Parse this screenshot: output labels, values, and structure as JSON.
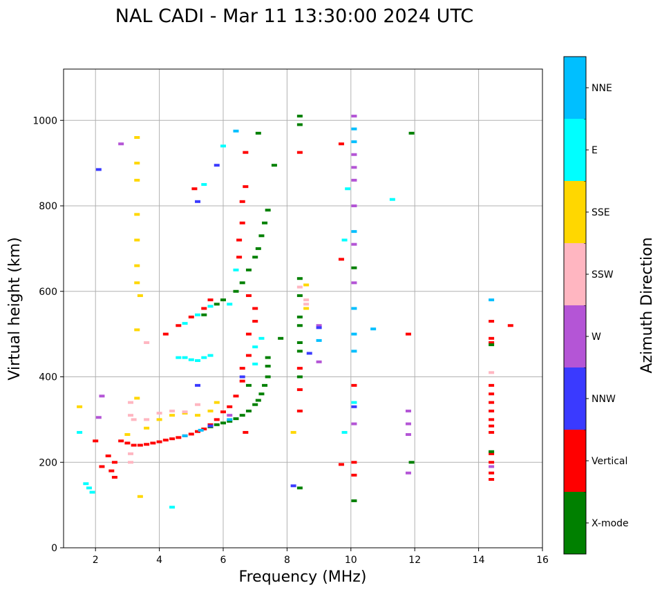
{
  "chart_data": {
    "type": "scatter",
    "title": "NAL CADI - Mar 11 13:30:00 2024 UTC",
    "xlabel": "Frequency (MHz)",
    "ylabel": "Virtual height (km)",
    "xlim": [
      1,
      16
    ],
    "ylim": [
      0,
      1120
    ],
    "xticks": [
      2,
      4,
      6,
      8,
      10,
      12,
      14,
      16
    ],
    "yticks": [
      0,
      200,
      400,
      600,
      800,
      1000
    ],
    "grid": true,
    "colorbar": {
      "label": "Azimuth Direction",
      "categories": [
        {
          "name": "X-mode",
          "color": "#008000"
        },
        {
          "name": "Vertical",
          "color": "#ff0000"
        },
        {
          "name": "NNW",
          "color": "#3a3aff"
        },
        {
          "name": "W",
          "color": "#b455d6"
        },
        {
          "name": "SSW",
          "color": "#ffb6c1"
        },
        {
          "name": "SSE",
          "color": "#ffd700"
        },
        {
          "name": "E",
          "color": "#00ffff"
        },
        {
          "name": "NNE",
          "color": "#00bfff"
        }
      ]
    },
    "points": [
      {
        "x": 2.0,
        "y": 250,
        "d": "Vertical"
      },
      {
        "x": 2.2,
        "y": 190,
        "d": "Vertical"
      },
      {
        "x": 2.4,
        "y": 215,
        "d": "Vertical"
      },
      {
        "x": 2.5,
        "y": 180,
        "d": "Vertical"
      },
      {
        "x": 2.6,
        "y": 200,
        "d": "Vertical"
      },
      {
        "x": 2.6,
        "y": 165,
        "d": "Vertical"
      },
      {
        "x": 2.8,
        "y": 250,
        "d": "Vertical"
      },
      {
        "x": 3.0,
        "y": 245,
        "d": "Vertical"
      },
      {
        "x": 3.2,
        "y": 240,
        "d": "Vertical"
      },
      {
        "x": 3.4,
        "y": 240,
        "d": "Vertical"
      },
      {
        "x": 3.6,
        "y": 242,
        "d": "Vertical"
      },
      {
        "x": 3.8,
        "y": 245,
        "d": "Vertical"
      },
      {
        "x": 4.0,
        "y": 248,
        "d": "Vertical"
      },
      {
        "x": 4.2,
        "y": 252,
        "d": "Vertical"
      },
      {
        "x": 4.4,
        "y": 255,
        "d": "Vertical"
      },
      {
        "x": 4.6,
        "y": 258,
        "d": "Vertical"
      },
      {
        "x": 4.8,
        "y": 262,
        "d": "Vertical"
      },
      {
        "x": 5.0,
        "y": 266,
        "d": "Vertical"
      },
      {
        "x": 5.2,
        "y": 272,
        "d": "Vertical"
      },
      {
        "x": 5.4,
        "y": 278,
        "d": "Vertical"
      },
      {
        "x": 5.6,
        "y": 288,
        "d": "Vertical"
      },
      {
        "x": 5.8,
        "y": 300,
        "d": "Vertical"
      },
      {
        "x": 6.0,
        "y": 318,
        "d": "Vertical"
      },
      {
        "x": 6.2,
        "y": 330,
        "d": "Vertical"
      },
      {
        "x": 6.4,
        "y": 355,
        "d": "Vertical"
      },
      {
        "x": 6.6,
        "y": 390,
        "d": "Vertical"
      },
      {
        "x": 6.6,
        "y": 420,
        "d": "Vertical"
      },
      {
        "x": 6.8,
        "y": 450,
        "d": "Vertical"
      },
      {
        "x": 6.8,
        "y": 500,
        "d": "Vertical"
      },
      {
        "x": 7.0,
        "y": 530,
        "d": "Vertical"
      },
      {
        "x": 7.0,
        "y": 560,
        "d": "Vertical"
      },
      {
        "x": 6.8,
        "y": 590,
        "d": "Vertical"
      },
      {
        "x": 6.5,
        "y": 680,
        "d": "Vertical"
      },
      {
        "x": 6.5,
        "y": 720,
        "d": "Vertical"
      },
      {
        "x": 6.6,
        "y": 760,
        "d": "Vertical"
      },
      {
        "x": 6.6,
        "y": 810,
        "d": "Vertical"
      },
      {
        "x": 6.7,
        "y": 845,
        "d": "Vertical"
      },
      {
        "x": 6.7,
        "y": 925,
        "d": "Vertical"
      },
      {
        "x": 4.2,
        "y": 500,
        "d": "Vertical"
      },
      {
        "x": 4.6,
        "y": 520,
        "d": "Vertical"
      },
      {
        "x": 5.0,
        "y": 540,
        "d": "Vertical"
      },
      {
        "x": 5.4,
        "y": 560,
        "d": "Vertical"
      },
      {
        "x": 5.6,
        "y": 580,
        "d": "Vertical"
      },
      {
        "x": 5.1,
        "y": 840,
        "d": "Vertical"
      },
      {
        "x": 6.7,
        "y": 270,
        "d": "Vertical"
      },
      {
        "x": 8.4,
        "y": 925,
        "d": "Vertical"
      },
      {
        "x": 8.4,
        "y": 420,
        "d": "Vertical"
      },
      {
        "x": 8.4,
        "y": 370,
        "d": "Vertical"
      },
      {
        "x": 8.4,
        "y": 320,
        "d": "Vertical"
      },
      {
        "x": 9.7,
        "y": 675,
        "d": "Vertical"
      },
      {
        "x": 9.7,
        "y": 945,
        "d": "Vertical"
      },
      {
        "x": 9.7,
        "y": 195,
        "d": "Vertical"
      },
      {
        "x": 10.1,
        "y": 380,
        "d": "Vertical"
      },
      {
        "x": 10.1,
        "y": 170,
        "d": "Vertical"
      },
      {
        "x": 10.1,
        "y": 200,
        "d": "Vertical"
      },
      {
        "x": 11.8,
        "y": 500,
        "d": "Vertical"
      },
      {
        "x": 14.4,
        "y": 530,
        "d": "Vertical"
      },
      {
        "x": 14.4,
        "y": 490,
        "d": "Vertical"
      },
      {
        "x": 14.4,
        "y": 480,
        "d": "Vertical"
      },
      {
        "x": 14.4,
        "y": 380,
        "d": "Vertical"
      },
      {
        "x": 14.4,
        "y": 360,
        "d": "Vertical"
      },
      {
        "x": 14.4,
        "y": 340,
        "d": "Vertical"
      },
      {
        "x": 14.4,
        "y": 320,
        "d": "Vertical"
      },
      {
        "x": 14.4,
        "y": 300,
        "d": "Vertical"
      },
      {
        "x": 14.4,
        "y": 285,
        "d": "Vertical"
      },
      {
        "x": 14.4,
        "y": 270,
        "d": "Vertical"
      },
      {
        "x": 14.4,
        "y": 220,
        "d": "Vertical"
      },
      {
        "x": 14.4,
        "y": 200,
        "d": "Vertical"
      },
      {
        "x": 14.4,
        "y": 175,
        "d": "Vertical"
      },
      {
        "x": 14.4,
        "y": 160,
        "d": "Vertical"
      },
      {
        "x": 15.0,
        "y": 520,
        "d": "Vertical"
      },
      {
        "x": 5.6,
        "y": 283,
        "d": "X-mode"
      },
      {
        "x": 5.8,
        "y": 288,
        "d": "X-mode"
      },
      {
        "x": 6.0,
        "y": 292,
        "d": "X-mode"
      },
      {
        "x": 6.2,
        "y": 296,
        "d": "X-mode"
      },
      {
        "x": 6.4,
        "y": 302,
        "d": "X-mode"
      },
      {
        "x": 6.6,
        "y": 310,
        "d": "X-mode"
      },
      {
        "x": 6.8,
        "y": 320,
        "d": "X-mode"
      },
      {
        "x": 7.0,
        "y": 335,
        "d": "X-mode"
      },
      {
        "x": 7.1,
        "y": 345,
        "d": "X-mode"
      },
      {
        "x": 7.2,
        "y": 360,
        "d": "X-mode"
      },
      {
        "x": 7.3,
        "y": 380,
        "d": "X-mode"
      },
      {
        "x": 7.4,
        "y": 400,
        "d": "X-mode"
      },
      {
        "x": 7.4,
        "y": 425,
        "d": "X-mode"
      },
      {
        "x": 7.4,
        "y": 445,
        "d": "X-mode"
      },
      {
        "x": 5.4,
        "y": 545,
        "d": "X-mode"
      },
      {
        "x": 5.8,
        "y": 570,
        "d": "X-mode"
      },
      {
        "x": 6.0,
        "y": 580,
        "d": "X-mode"
      },
      {
        "x": 6.4,
        "y": 600,
        "d": "X-mode"
      },
      {
        "x": 6.6,
        "y": 620,
        "d": "X-mode"
      },
      {
        "x": 6.8,
        "y": 650,
        "d": "X-mode"
      },
      {
        "x": 7.0,
        "y": 680,
        "d": "X-mode"
      },
      {
        "x": 7.1,
        "y": 700,
        "d": "X-mode"
      },
      {
        "x": 7.2,
        "y": 730,
        "d": "X-mode"
      },
      {
        "x": 7.3,
        "y": 760,
        "d": "X-mode"
      },
      {
        "x": 7.4,
        "y": 790,
        "d": "X-mode"
      },
      {
        "x": 7.6,
        "y": 895,
        "d": "X-mode"
      },
      {
        "x": 7.1,
        "y": 970,
        "d": "X-mode"
      },
      {
        "x": 6.8,
        "y": 380,
        "d": "X-mode"
      },
      {
        "x": 8.4,
        "y": 1010,
        "d": "X-mode"
      },
      {
        "x": 8.4,
        "y": 990,
        "d": "X-mode"
      },
      {
        "x": 8.4,
        "y": 630,
        "d": "X-mode"
      },
      {
        "x": 8.4,
        "y": 590,
        "d": "X-mode"
      },
      {
        "x": 8.4,
        "y": 540,
        "d": "X-mode"
      },
      {
        "x": 8.4,
        "y": 520,
        "d": "X-mode"
      },
      {
        "x": 8.4,
        "y": 480,
        "d": "X-mode"
      },
      {
        "x": 8.4,
        "y": 460,
        "d": "X-mode"
      },
      {
        "x": 8.4,
        "y": 400,
        "d": "X-mode"
      },
      {
        "x": 8.4,
        "y": 140,
        "d": "X-mode"
      },
      {
        "x": 10.1,
        "y": 655,
        "d": "X-mode"
      },
      {
        "x": 10.1,
        "y": 110,
        "d": "X-mode"
      },
      {
        "x": 11.9,
        "y": 970,
        "d": "X-mode"
      },
      {
        "x": 11.9,
        "y": 200,
        "d": "X-mode"
      },
      {
        "x": 14.4,
        "y": 225,
        "d": "X-mode"
      },
      {
        "x": 14.4,
        "y": 475,
        "d": "X-mode"
      },
      {
        "x": 7.8,
        "y": 490,
        "d": "X-mode"
      },
      {
        "x": 1.5,
        "y": 270,
        "d": "E"
      },
      {
        "x": 1.7,
        "y": 150,
        "d": "E"
      },
      {
        "x": 1.8,
        "y": 140,
        "d": "E"
      },
      {
        "x": 1.9,
        "y": 130,
        "d": "E"
      },
      {
        "x": 4.6,
        "y": 445,
        "d": "E"
      },
      {
        "x": 4.8,
        "y": 445,
        "d": "E"
      },
      {
        "x": 5.0,
        "y": 440,
        "d": "E"
      },
      {
        "x": 5.2,
        "y": 438,
        "d": "E"
      },
      {
        "x": 5.4,
        "y": 445,
        "d": "E"
      },
      {
        "x": 5.6,
        "y": 450,
        "d": "E"
      },
      {
        "x": 4.8,
        "y": 525,
        "d": "E"
      },
      {
        "x": 5.2,
        "y": 545,
        "d": "E"
      },
      {
        "x": 5.6,
        "y": 565,
        "d": "E"
      },
      {
        "x": 6.4,
        "y": 650,
        "d": "E"
      },
      {
        "x": 6.2,
        "y": 570,
        "d": "E"
      },
      {
        "x": 7.0,
        "y": 470,
        "d": "E"
      },
      {
        "x": 7.0,
        "y": 430,
        "d": "E"
      },
      {
        "x": 7.2,
        "y": 490,
        "d": "E"
      },
      {
        "x": 5.4,
        "y": 850,
        "d": "E"
      },
      {
        "x": 10.1,
        "y": 340,
        "d": "E"
      },
      {
        "x": 9.9,
        "y": 840,
        "d": "E"
      },
      {
        "x": 9.8,
        "y": 720,
        "d": "E"
      },
      {
        "x": 9.8,
        "y": 270,
        "d": "E"
      },
      {
        "x": 11.3,
        "y": 815,
        "d": "E"
      },
      {
        "x": 4.4,
        "y": 95,
        "d": "E"
      },
      {
        "x": 6.0,
        "y": 940,
        "d": "E"
      },
      {
        "x": 6.4,
        "y": 975,
        "d": "NNE"
      },
      {
        "x": 10.1,
        "y": 980,
        "d": "NNE"
      },
      {
        "x": 10.1,
        "y": 950,
        "d": "NNE"
      },
      {
        "x": 10.1,
        "y": 740,
        "d": "NNE"
      },
      {
        "x": 10.1,
        "y": 560,
        "d": "NNE"
      },
      {
        "x": 10.1,
        "y": 500,
        "d": "NNE"
      },
      {
        "x": 10.1,
        "y": 460,
        "d": "NNE"
      },
      {
        "x": 14.4,
        "y": 580,
        "d": "NNE"
      },
      {
        "x": 6.2,
        "y": 300,
        "d": "NNE"
      },
      {
        "x": 5.3,
        "y": 275,
        "d": "NNE"
      },
      {
        "x": 4.8,
        "y": 262,
        "d": "NNE"
      },
      {
        "x": 10.7,
        "y": 512,
        "d": "NNE"
      },
      {
        "x": 9.0,
        "y": 485,
        "d": "NNE"
      },
      {
        "x": 1.5,
        "y": 330,
        "d": "SSE"
      },
      {
        "x": 3.3,
        "y": 960,
        "d": "SSE"
      },
      {
        "x": 3.3,
        "y": 900,
        "d": "SSE"
      },
      {
        "x": 3.3,
        "y": 860,
        "d": "SSE"
      },
      {
        "x": 3.3,
        "y": 780,
        "d": "SSE"
      },
      {
        "x": 3.3,
        "y": 720,
        "d": "SSE"
      },
      {
        "x": 3.3,
        "y": 660,
        "d": "SSE"
      },
      {
        "x": 3.3,
        "y": 620,
        "d": "SSE"
      },
      {
        "x": 3.4,
        "y": 590,
        "d": "SSE"
      },
      {
        "x": 3.3,
        "y": 510,
        "d": "SSE"
      },
      {
        "x": 3.3,
        "y": 350,
        "d": "SSE"
      },
      {
        "x": 3.4,
        "y": 120,
        "d": "SSE"
      },
      {
        "x": 3.6,
        "y": 280,
        "d": "SSE"
      },
      {
        "x": 4.0,
        "y": 300,
        "d": "SSE"
      },
      {
        "x": 4.4,
        "y": 310,
        "d": "SSE"
      },
      {
        "x": 4.8,
        "y": 315,
        "d": "SSE"
      },
      {
        "x": 5.2,
        "y": 310,
        "d": "SSE"
      },
      {
        "x": 5.6,
        "y": 320,
        "d": "SSE"
      },
      {
        "x": 3.0,
        "y": 265,
        "d": "SSE"
      },
      {
        "x": 8.6,
        "y": 615,
        "d": "SSE"
      },
      {
        "x": 8.6,
        "y": 560,
        "d": "SSE"
      },
      {
        "x": 8.2,
        "y": 270,
        "d": "SSE"
      },
      {
        "x": 5.8,
        "y": 340,
        "d": "SSE"
      },
      {
        "x": 3.1,
        "y": 340,
        "d": "SSW"
      },
      {
        "x": 3.1,
        "y": 310,
        "d": "SSW"
      },
      {
        "x": 3.2,
        "y": 300,
        "d": "SSW"
      },
      {
        "x": 3.1,
        "y": 220,
        "d": "SSW"
      },
      {
        "x": 3.1,
        "y": 200,
        "d": "SSW"
      },
      {
        "x": 3.6,
        "y": 300,
        "d": "SSW"
      },
      {
        "x": 4.0,
        "y": 315,
        "d": "SSW"
      },
      {
        "x": 4.4,
        "y": 320,
        "d": "SSW"
      },
      {
        "x": 4.8,
        "y": 318,
        "d": "SSW"
      },
      {
        "x": 5.2,
        "y": 335,
        "d": "SSW"
      },
      {
        "x": 8.6,
        "y": 580,
        "d": "SSW"
      },
      {
        "x": 8.6,
        "y": 570,
        "d": "SSW"
      },
      {
        "x": 8.4,
        "y": 610,
        "d": "SSW"
      },
      {
        "x": 14.4,
        "y": 410,
        "d": "SSW"
      },
      {
        "x": 3.6,
        "y": 480,
        "d": "SSW"
      },
      {
        "x": 2.2,
        "y": 355,
        "d": "W"
      },
      {
        "x": 2.1,
        "y": 305,
        "d": "W"
      },
      {
        "x": 2.8,
        "y": 945,
        "d": "W"
      },
      {
        "x": 10.1,
        "y": 1010,
        "d": "W"
      },
      {
        "x": 10.1,
        "y": 920,
        "d": "W"
      },
      {
        "x": 10.1,
        "y": 890,
        "d": "W"
      },
      {
        "x": 10.1,
        "y": 860,
        "d": "W"
      },
      {
        "x": 10.1,
        "y": 800,
        "d": "W"
      },
      {
        "x": 10.1,
        "y": 710,
        "d": "W"
      },
      {
        "x": 10.1,
        "y": 620,
        "d": "W"
      },
      {
        "x": 10.1,
        "y": 290,
        "d": "W"
      },
      {
        "x": 9.0,
        "y": 520,
        "d": "W"
      },
      {
        "x": 9.0,
        "y": 435,
        "d": "W"
      },
      {
        "x": 11.8,
        "y": 320,
        "d": "W"
      },
      {
        "x": 11.8,
        "y": 290,
        "d": "W"
      },
      {
        "x": 11.8,
        "y": 265,
        "d": "W"
      },
      {
        "x": 11.8,
        "y": 175,
        "d": "W"
      },
      {
        "x": 14.4,
        "y": 190,
        "d": "W"
      },
      {
        "x": 6.2,
        "y": 310,
        "d": "W"
      },
      {
        "x": 2.1,
        "y": 885,
        "d": "NNW"
      },
      {
        "x": 5.8,
        "y": 895,
        "d": "NNW"
      },
      {
        "x": 5.2,
        "y": 810,
        "d": "NNW"
      },
      {
        "x": 5.2,
        "y": 380,
        "d": "NNW"
      },
      {
        "x": 8.2,
        "y": 145,
        "d": "NNW"
      },
      {
        "x": 8.7,
        "y": 455,
        "d": "NNW"
      },
      {
        "x": 9.0,
        "y": 515,
        "d": "NNW"
      },
      {
        "x": 10.1,
        "y": 330,
        "d": "NNW"
      },
      {
        "x": 5.6,
        "y": 285,
        "d": "NNW"
      },
      {
        "x": 6.6,
        "y": 400,
        "d": "NNW"
      }
    ]
  }
}
